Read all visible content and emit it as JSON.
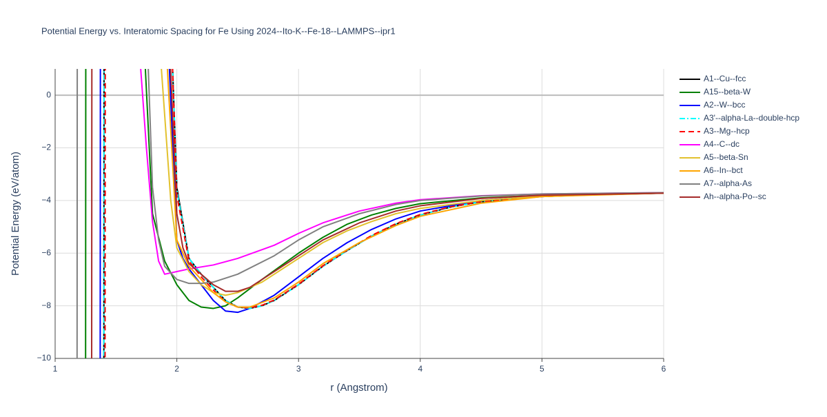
{
  "chart_data": {
    "type": "line",
    "title": "Potential Energy vs. Interatomic Spacing for Fe Using 2024--Ito-K--Fe-18--LAMMPS--ipr1",
    "x_label": "r (Angstrom)",
    "y_label": "Potential Energy (eV/atom)",
    "xlim": [
      1,
      6
    ],
    "ylim": [
      -10,
      1
    ],
    "xticks": [
      1,
      2,
      3,
      4,
      5,
      6
    ],
    "yticks": [
      {
        "value": -10,
        "label": "−10"
      },
      {
        "value": -8,
        "label": "−8"
      },
      {
        "value": -6,
        "label": "−6"
      },
      {
        "value": -4,
        "label": "−4"
      },
      {
        "value": -2,
        "label": "−2"
      },
      0
    ],
    "grid": true,
    "legend": "right",
    "series": [
      {
        "name": "A1--Cu--fcc",
        "color": "#000000",
        "dash": "solid",
        "x": [
          1.4,
          1.402,
          1.95,
          2.0,
          2.1,
          2.2,
          2.3,
          2.4,
          2.5,
          2.6,
          2.7,
          2.8,
          3.0,
          3.2,
          3.4,
          3.6,
          3.8,
          4.0,
          4.25,
          4.5,
          5.0,
          5.5,
          6.0
        ],
        "values": [
          -12,
          3,
          3,
          -3.5,
          -6.2,
          -6.8,
          -7.3,
          -7.8,
          -8.05,
          -8.1,
          -8.0,
          -7.8,
          -7.2,
          -6.5,
          -5.9,
          -5.35,
          -4.9,
          -4.55,
          -4.25,
          -4.05,
          -3.85,
          -3.77,
          -3.72
        ]
      },
      {
        "name": "A15--beta-W",
        "color": "#008000",
        "dash": "solid",
        "x": [
          1.25,
          1.252,
          1.72,
          1.8,
          1.9,
          2.0,
          2.1,
          2.2,
          2.3,
          2.4,
          2.5,
          2.7,
          3.0,
          3.2,
          3.4,
          3.6,
          3.8,
          4.0,
          4.5,
          5.0,
          5.5,
          6.0
        ],
        "values": [
          -12,
          3,
          3,
          -4.5,
          -6.3,
          -7.2,
          -7.8,
          -8.05,
          -8.1,
          -8.0,
          -7.7,
          -7.0,
          -6.0,
          -5.4,
          -4.9,
          -4.55,
          -4.3,
          -4.12,
          -3.9,
          -3.8,
          -3.75,
          -3.72
        ]
      },
      {
        "name": "A2--W--bcc",
        "color": "#0000ff",
        "dash": "solid",
        "x": [
          1.37,
          1.372,
          1.92,
          2.0,
          2.05,
          2.1,
          2.2,
          2.3,
          2.4,
          2.5,
          2.6,
          2.8,
          3.0,
          3.2,
          3.4,
          3.6,
          3.8,
          4.0,
          4.5,
          5.0,
          5.5,
          6.0
        ],
        "values": [
          -12,
          3,
          3,
          -5.5,
          -6.2,
          -6.6,
          -7.2,
          -7.8,
          -8.2,
          -8.25,
          -8.1,
          -7.6,
          -6.9,
          -6.2,
          -5.6,
          -5.1,
          -4.7,
          -4.4,
          -4.0,
          -3.82,
          -3.76,
          -3.72
        ]
      },
      {
        "name": "A3'--alpha-La--double-hcp",
        "color": "#00ffff",
        "dash": "dashdot",
        "x": [
          1.4,
          1.402,
          1.95,
          2.0,
          2.1,
          2.2,
          2.3,
          2.4,
          2.5,
          2.6,
          2.7,
          2.8,
          3.0,
          3.2,
          3.4,
          3.6,
          3.8,
          4.0,
          4.25,
          4.5,
          5.0,
          5.5,
          6.0
        ],
        "values": [
          -12,
          3,
          3,
          -3.6,
          -6.2,
          -6.8,
          -7.3,
          -7.8,
          -8.05,
          -8.1,
          -8.0,
          -7.8,
          -7.2,
          -6.5,
          -5.9,
          -5.35,
          -4.9,
          -4.55,
          -4.25,
          -4.05,
          -3.85,
          -3.77,
          -3.72
        ]
      },
      {
        "name": "A3--Mg--hcp",
        "color": "#ff0000",
        "dash": "dash",
        "x": [
          1.41,
          1.412,
          1.95,
          2.0,
          2.1,
          2.2,
          2.3,
          2.4,
          2.5,
          2.6,
          2.7,
          2.8,
          3.0,
          3.2,
          3.4,
          3.6,
          3.8,
          4.0,
          4.25,
          4.5,
          5.0,
          5.5,
          6.0
        ],
        "values": [
          -12,
          3,
          3,
          -3.8,
          -6.3,
          -6.9,
          -7.4,
          -7.85,
          -8.05,
          -8.08,
          -7.98,
          -7.78,
          -7.18,
          -6.48,
          -5.88,
          -5.33,
          -4.88,
          -4.53,
          -4.24,
          -4.04,
          -3.85,
          -3.77,
          -3.72
        ]
      },
      {
        "name": "A4--C--dc",
        "color": "#ff00ff",
        "dash": "solid",
        "x": [
          1.7,
          1.75,
          1.8,
          1.85,
          1.9,
          2.0,
          2.1,
          2.3,
          2.5,
          2.8,
          3.0,
          3.2,
          3.5,
          3.8,
          4.0,
          4.5,
          5.0,
          6.0
        ],
        "values": [
          1.2,
          -2,
          -4.8,
          -6.3,
          -6.8,
          -6.7,
          -6.6,
          -6.45,
          -6.2,
          -5.7,
          -5.25,
          -4.85,
          -4.4,
          -4.1,
          -3.97,
          -3.82,
          -3.75,
          -3.7
        ]
      },
      {
        "name": "A5--beta-Sn",
        "color": "#e2c12d",
        "dash": "solid",
        "x": [
          1.87,
          1.95,
          2.0,
          2.1,
          2.2,
          2.3,
          2.4,
          2.5,
          2.7,
          3.0,
          3.2,
          3.4,
          3.6,
          3.8,
          4.0,
          4.5,
          5.0,
          6.0
        ],
        "values": [
          1.2,
          -4,
          -5.8,
          -6.7,
          -7.2,
          -7.5,
          -7.6,
          -7.5,
          -7.1,
          -6.2,
          -5.6,
          -5.15,
          -4.8,
          -4.5,
          -4.3,
          -4.0,
          -3.83,
          -3.72
        ]
      },
      {
        "name": "A6--In--bct",
        "color": "#ffa500",
        "dash": "solid",
        "x": [
          1.92,
          2.0,
          2.1,
          2.2,
          2.3,
          2.4,
          2.5,
          2.6,
          2.8,
          3.0,
          3.2,
          3.5,
          3.8,
          4.0,
          4.5,
          5.0,
          6.0
        ],
        "values": [
          1.2,
          -5.5,
          -6.5,
          -7.0,
          -7.5,
          -7.85,
          -8.05,
          -8.05,
          -7.7,
          -7.1,
          -6.4,
          -5.6,
          -4.95,
          -4.6,
          -4.1,
          -3.85,
          -3.72
        ]
      },
      {
        "name": "A7--alpha-As",
        "color": "#808080",
        "dash": "solid",
        "x": [
          1.18,
          1.182,
          1.75,
          1.8,
          1.85,
          1.9,
          2.0,
          2.1,
          2.2,
          2.3,
          2.5,
          2.8,
          3.0,
          3.2,
          3.5,
          3.8,
          4.0,
          4.5,
          5.0,
          6.0
        ],
        "values": [
          -12,
          3,
          3,
          -3.5,
          -5.5,
          -6.5,
          -7.0,
          -7.15,
          -7.15,
          -7.1,
          -6.8,
          -6.1,
          -5.5,
          -5.0,
          -4.5,
          -4.15,
          -4.0,
          -3.83,
          -3.75,
          -3.7
        ]
      },
      {
        "name": "Ah--alpha-Po--sc",
        "color": "#a52a2a",
        "dash": "solid",
        "x": [
          1.3,
          1.302,
          1.93,
          2.0,
          2.05,
          2.1,
          2.2,
          2.3,
          2.4,
          2.5,
          2.6,
          2.8,
          3.0,
          3.2,
          3.5,
          3.8,
          4.0,
          4.5,
          5.0,
          6.0
        ],
        "values": [
          -12,
          3,
          3,
          -4.5,
          -5.8,
          -6.4,
          -6.8,
          -7.2,
          -7.45,
          -7.45,
          -7.3,
          -6.7,
          -6.1,
          -5.5,
          -4.85,
          -4.4,
          -4.2,
          -3.92,
          -3.8,
          -3.72
        ]
      }
    ]
  }
}
